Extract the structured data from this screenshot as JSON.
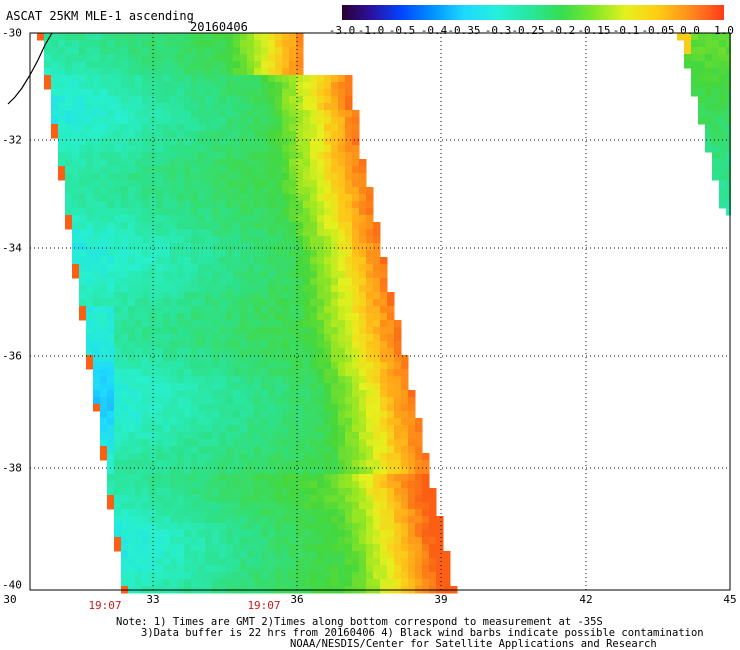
{
  "header": {
    "title": "ASCAT 25KM MLE-1 ascending",
    "date": "20160406"
  },
  "colorbar": {
    "ticks": [
      "-3.0",
      "-1.0",
      "-0.5",
      "-0.4",
      "-0.35",
      "-0.3",
      "-0.25",
      "-0.2",
      "-0.15",
      "-0.1",
      "-0.05",
      "0.0",
      "1.0"
    ],
    "colors": [
      "#2a0030",
      "#2b10a0",
      "#0046ff",
      "#0095ff",
      "#1ed8ff",
      "#25f0da",
      "#28e8a0",
      "#35dd50",
      "#80e828",
      "#e6f01e",
      "#ffcc14",
      "#ff8c1c",
      "#ff3b1a"
    ]
  },
  "axes": {
    "lat_labels": [
      "-30",
      "-32",
      "-34",
      "-36",
      "-38",
      "-40"
    ],
    "lon_labels": [
      "30",
      "33",
      "36",
      "39",
      "42",
      "45"
    ]
  },
  "time_labels": [
    "19:07",
    "19:07"
  ],
  "notes": {
    "line1": "Note: 1) Times are GMT 2)Times along bottom correspond to measurement at -35S",
    "line2": "3)Data buffer is 22 hrs from 20160406 4) Black wind barbs indicate possible contamination",
    "line3": "NOAA/NESDIS/Center for Satellite Applications and Research"
  },
  "legend_colors": {
    "frame": "#000000",
    "grid": "#000000"
  }
}
